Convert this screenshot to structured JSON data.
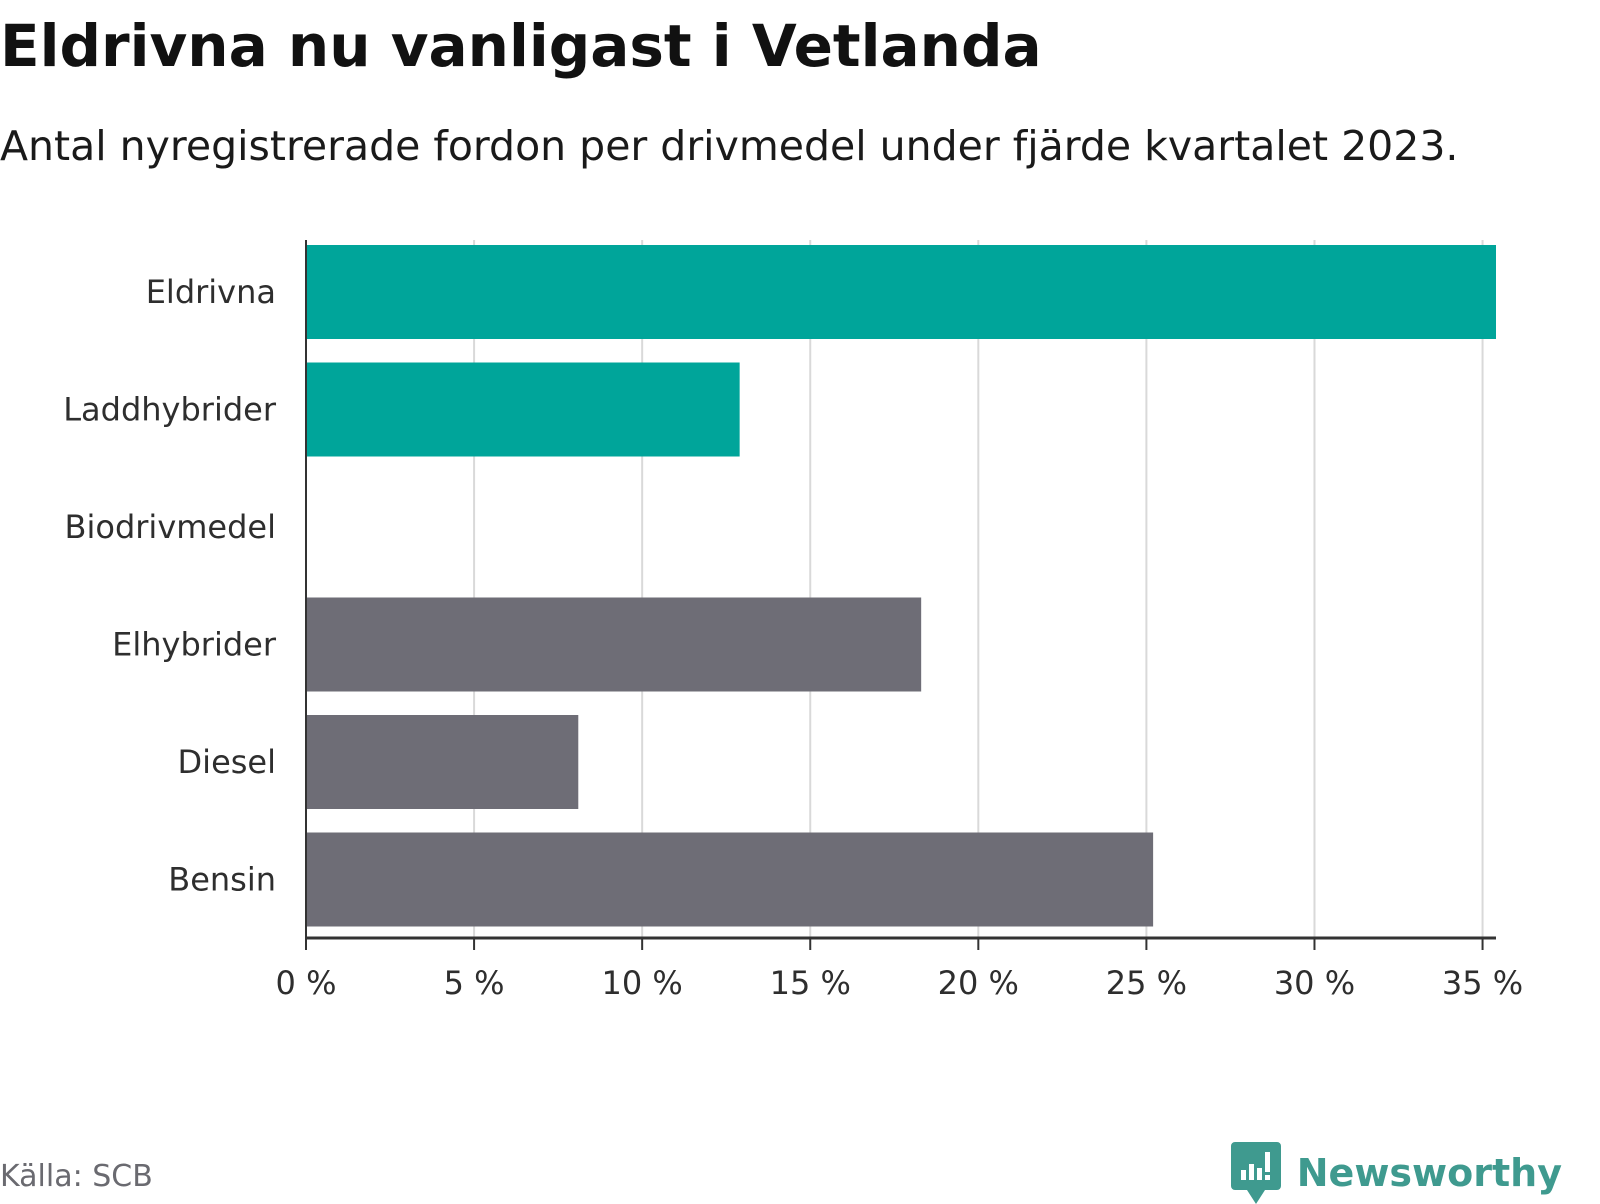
{
  "title": "Eldrivna nu vanligast i Vetlanda",
  "subtitle": "Antal nyregistrerade fordon per drivmedel under fjärde kvartalet 2023.",
  "source": "Källa: SCB",
  "brand": {
    "name": "Newsworthy",
    "color": "#3f9a8f",
    "icon": "newsworthy-logo-icon"
  },
  "colors": {
    "highlight": "#00a59a",
    "neutral": "#6e6d76",
    "grid": "#d9d9d9",
    "axis": "#333333"
  },
  "chart_data": {
    "type": "bar",
    "orientation": "horizontal",
    "title": "Eldrivna nu vanligast i Vetlanda",
    "subtitle": "Antal nyregistrerade fordon per drivmedel under fjärde kvartalet 2023.",
    "xlabel": "",
    "ylabel": "",
    "categories": [
      "Eldrivna",
      "Laddhybrider",
      "Biodrivmedel",
      "Elhybrider",
      "Diesel",
      "Bensin"
    ],
    "values": [
      35.4,
      12.9,
      0,
      18.3,
      8.1,
      25.2
    ],
    "highlight": [
      true,
      true,
      false,
      false,
      false,
      false
    ],
    "xlim": [
      0,
      35.4
    ],
    "ticks": [
      0,
      5,
      10,
      15,
      20,
      25,
      30,
      35
    ],
    "tick_labels": [
      "0 %",
      "5 %",
      "10 %",
      "15 %",
      "20 %",
      "25 %",
      "30 %",
      "35 %"
    ],
    "unit": "%",
    "grid": true,
    "legend": "none"
  }
}
